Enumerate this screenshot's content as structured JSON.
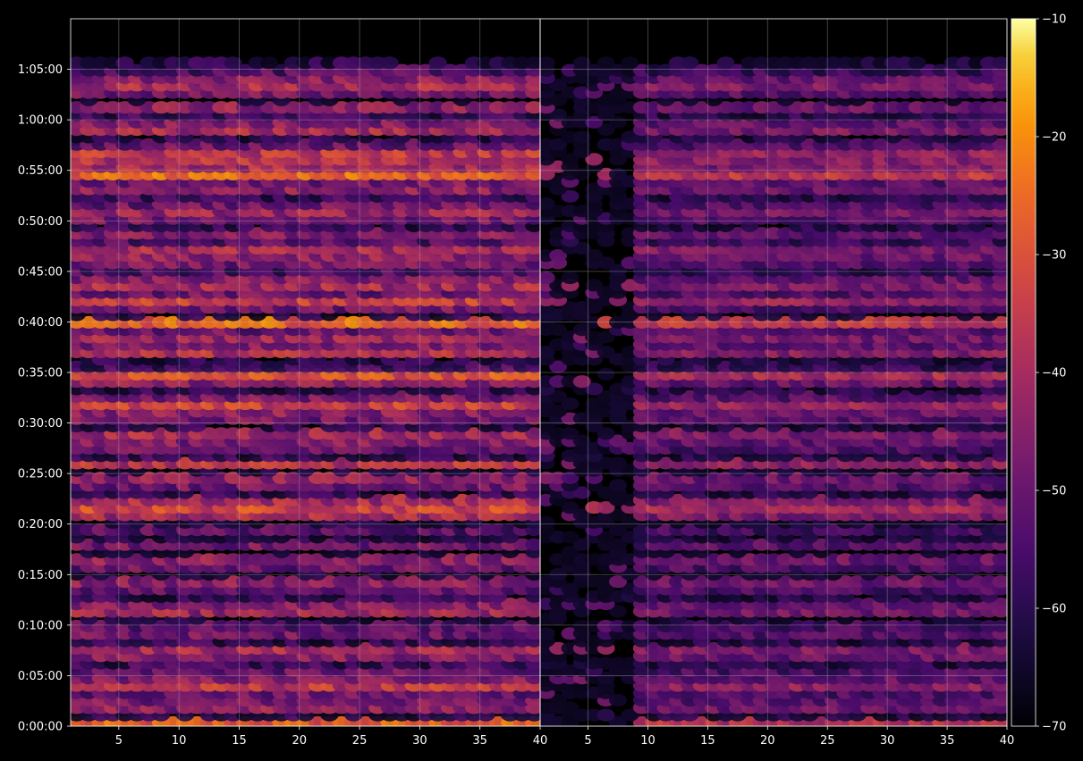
{
  "chart_data": {
    "type": "heatmap",
    "title": "",
    "xlabel": "",
    "ylabel": "",
    "background": "#000000",
    "colormap": "inferno",
    "grid": true,
    "panels": [
      {
        "name": "",
        "xlim": [
          1,
          40
        ],
        "ylim_seconds": [
          0,
          4200
        ],
        "intensity_scale": 1.0
      },
      {
        "name": "",
        "xlim": [
          1,
          40
        ],
        "ylim_seconds": [
          0,
          4200
        ],
        "intensity_scale": 0.78,
        "notes": "right panel is dimmer and has a dark gap for low channels"
      }
    ],
    "x_ticks": {
      "values": [
        5,
        10,
        15,
        20,
        25,
        30,
        35,
        40
      ],
      "labels": [
        "5",
        "10",
        "15",
        "20",
        "25",
        "30",
        "35",
        "40"
      ]
    },
    "y_ticks": {
      "values": [
        0,
        300,
        600,
        900,
        1200,
        1500,
        1800,
        2100,
        2400,
        2700,
        3000,
        3300,
        3600,
        3900
      ],
      "labels": [
        "0:00:00",
        "0:05:00",
        "0:10:00",
        "0:15:00",
        "0:20:00",
        "0:25:00",
        "0:30:00",
        "0:35:00",
        "0:40:00",
        "0:45:00",
        "0:50:00",
        "0:55:00",
        "1:00:00",
        "1:05:00"
      ]
    },
    "colorbar": {
      "range": [
        -70,
        -10
      ],
      "ticks": [
        -70,
        -60,
        -50,
        -40,
        -30,
        -20,
        -10
      ],
      "tick_labels": [
        "−70",
        "−60",
        "−50",
        "−40",
        "−30",
        "−20",
        "−10"
      ]
    },
    "row_levels": [
      -28,
      -62,
      -44,
      -48,
      -50,
      -36,
      -46,
      -50,
      -58,
      -44,
      -40,
      -60,
      -48,
      -52,
      -66,
      -42,
      -46,
      -60,
      -50,
      -44,
      -66,
      -50,
      -44,
      -70,
      -48,
      -64,
      -52,
      -66,
      -40,
      -32,
      -40,
      -60,
      -48,
      -44,
      -66,
      -36,
      -60,
      -50,
      -46,
      -40,
      -62,
      -48,
      -44,
      -34,
      -48,
      -60,
      -44,
      -30,
      -56,
      -62,
      -38,
      -46,
      -42,
      -50,
      -26,
      -64,
      -48,
      -34,
      -50,
      -40,
      -46,
      -56,
      -48,
      -44,
      -40,
      -54,
      -46,
      -60,
      -48,
      -42,
      -50,
      -58,
      -44,
      -48,
      -26,
      -40,
      -38,
      -36,
      -50,
      -62,
      -40,
      -46,
      -58,
      -44,
      -70,
      -48,
      -40,
      -46,
      -54,
      -62
    ]
  }
}
